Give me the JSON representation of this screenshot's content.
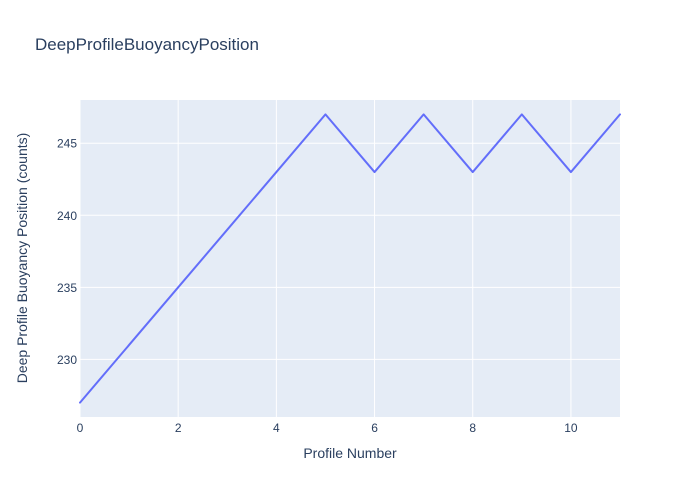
{
  "title": "DeepProfileBuoyancyPosition",
  "colors": {
    "background": "#ffffff",
    "plot_background": "#e5ecf6",
    "gridline": "#ffffff",
    "text": "#2a3f5f",
    "line": "#636efa"
  },
  "chart_data": {
    "type": "line",
    "title": "DeepProfileBuoyancyPosition",
    "xlabel": "Profile Number",
    "ylabel": "Deep Profile Buoyancy Position (counts)",
    "x": [
      0,
      1,
      2,
      3,
      4,
      5,
      6,
      7,
      8,
      9,
      10,
      11
    ],
    "y": [
      227,
      231,
      235,
      239,
      243,
      247,
      243,
      247,
      243,
      247,
      243,
      247
    ],
    "xlim": [
      0,
      11
    ],
    "ylim": [
      226,
      248
    ],
    "x_ticks": [
      0,
      2,
      4,
      6,
      8,
      10
    ],
    "y_ticks": [
      230,
      235,
      240,
      245
    ],
    "grid": true,
    "legend": false,
    "plot_bg": "#e5ecf6",
    "grid_color": "#ffffff",
    "text_color": "#2a3f5f",
    "line_color": "#636efa"
  }
}
